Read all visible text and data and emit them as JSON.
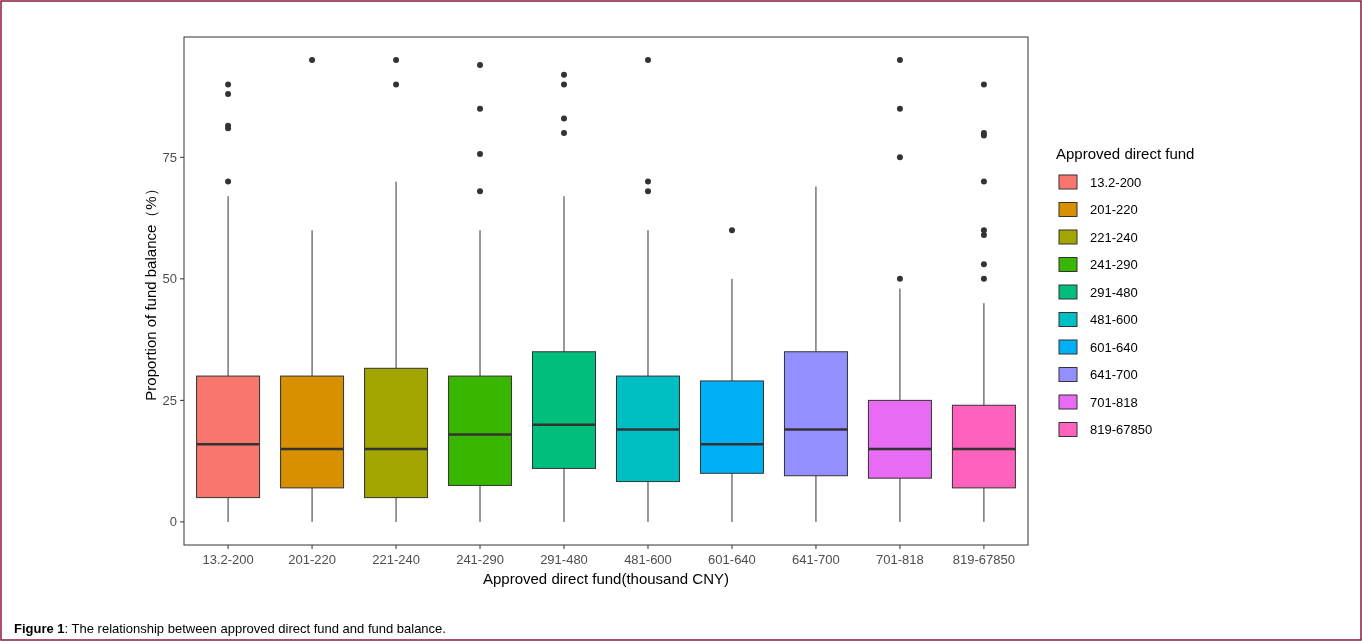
{
  "chart_data": {
    "type": "box",
    "xlabel": "Approved direct fund(thousand CNY)",
    "ylabel": "Proportion of fund balance（%）",
    "legend_title": "Approved direct fund",
    "legend": "right",
    "grid": false,
    "marker": "circle",
    "categories": [
      "13.2-200",
      "201-220",
      "221-240",
      "241-290",
      "291-480",
      "481-600",
      "601-640",
      "641-700",
      "701-818",
      "819-67850"
    ],
    "ylim": [
      -4.75,
      99.75
    ],
    "yticks": [
      0,
      25,
      50,
      75
    ],
    "series": [
      {
        "name": "13.2-200",
        "color": "#f8766d",
        "boxes": [
          {
            "low": 0,
            "q1": 5,
            "median": 16,
            "q3": 30,
            "high": 67,
            "outliers": [
              70,
              81,
              81.5,
              88,
              90
            ]
          },
          null,
          null,
          null,
          null,
          null,
          null,
          null,
          null,
          null
        ]
      },
      {
        "name": "201-220",
        "color": "#d89000",
        "boxes": [
          null,
          {
            "low": 0,
            "q1": 7,
            "median": 15,
            "q3": 30,
            "high": 60,
            "outliers": [
              95
            ]
          },
          null,
          null,
          null,
          null,
          null,
          null,
          null,
          null
        ]
      },
      {
        "name": "221-240",
        "color": "#a3a500",
        "boxes": [
          null,
          null,
          {
            "low": 0,
            "q1": 5,
            "median": 15,
            "q3": 31.6,
            "high": 70,
            "outliers": [
              90,
              95
            ]
          },
          null,
          null,
          null,
          null,
          null,
          null,
          null
        ]
      },
      {
        "name": "241-290",
        "color": "#39b600",
        "boxes": [
          null,
          null,
          null,
          {
            "low": 0,
            "q1": 7.5,
            "median": 18,
            "q3": 30,
            "high": 60,
            "outliers": [
              68,
              75.7,
              85,
              94
            ]
          },
          null,
          null,
          null,
          null,
          null,
          null
        ]
      },
      {
        "name": "291-480",
        "color": "#00bf7d",
        "boxes": [
          null,
          null,
          null,
          null,
          {
            "low": 0,
            "q1": 11,
            "median": 20,
            "q3": 35,
            "high": 67,
            "outliers": [
              80,
              83,
              90,
              92
            ]
          },
          null,
          null,
          null,
          null,
          null
        ]
      },
      {
        "name": "481-600",
        "color": "#00bfc4",
        "boxes": [
          null,
          null,
          null,
          null,
          null,
          {
            "low": 0,
            "q1": 8.3,
            "median": 19,
            "q3": 30,
            "high": 60,
            "outliers": [
              68,
              70,
              95
            ]
          },
          null,
          null,
          null,
          null
        ]
      },
      {
        "name": "601-640",
        "color": "#00b0f6",
        "boxes": [
          null,
          null,
          null,
          null,
          null,
          null,
          {
            "low": 0,
            "q1": 10,
            "median": 16,
            "q3": 29,
            "high": 50,
            "outliers": [
              60
            ]
          },
          null,
          null,
          null
        ]
      },
      {
        "name": "641-700",
        "color": "#9590ff",
        "boxes": [
          null,
          null,
          null,
          null,
          null,
          null,
          null,
          {
            "low": 0,
            "q1": 9.5,
            "median": 19,
            "q3": 35,
            "high": 69
          },
          null,
          null
        ]
      },
      {
        "name": "701-818",
        "color": "#e76bf3",
        "boxes": [
          null,
          null,
          null,
          null,
          null,
          null,
          null,
          null,
          {
            "low": 0,
            "q1": 9,
            "median": 15,
            "q3": 25,
            "high": 48,
            "outliers": [
              50,
              75,
              85,
              95
            ]
          },
          null
        ]
      },
      {
        "name": "819-67850",
        "color": "#ff62bc",
        "boxes": [
          null,
          null,
          null,
          null,
          null,
          null,
          null,
          null,
          null,
          {
            "low": 0,
            "q1": 7,
            "median": 15,
            "q3": 24,
            "high": 45,
            "outliers": [
              50,
              53,
              59,
              60,
              70,
              79.5,
              80,
              90
            ]
          }
        ]
      }
    ],
    "annotations": [
      "Figure 1: The relationship between approved direct fund and fund balance."
    ]
  }
}
